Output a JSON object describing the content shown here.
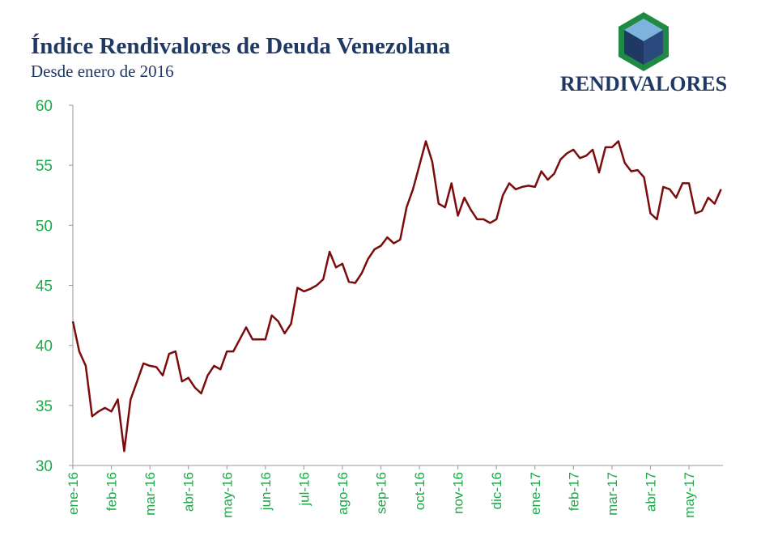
{
  "chart_data": {
    "type": "line",
    "title": "Índice Rendivalores de Deuda Venezolana",
    "subtitle": "Desde enero de 2016",
    "logo_text": "RENDIVALORES",
    "categories": [
      "ene-16",
      null,
      null,
      null,
      null,
      null,
      "feb-16",
      null,
      null,
      null,
      null,
      null,
      "mar-16",
      null,
      null,
      null,
      null,
      null,
      "abr-16",
      null,
      null,
      null,
      null,
      null,
      "may-16",
      null,
      null,
      null,
      null,
      null,
      "jun-16",
      null,
      null,
      null,
      null,
      null,
      "jul-16",
      null,
      null,
      null,
      null,
      null,
      "ago-16",
      null,
      null,
      null,
      null,
      null,
      "sep-16",
      null,
      null,
      null,
      null,
      null,
      "oct-16",
      null,
      null,
      null,
      null,
      null,
      "nov-16",
      null,
      null,
      null,
      null,
      null,
      "dic-16",
      null,
      null,
      null,
      null,
      null,
      "ene-17",
      null,
      null,
      null,
      null,
      null,
      "feb-17",
      null,
      null,
      null,
      null,
      null,
      "mar-17",
      null,
      null,
      null,
      null,
      null,
      "abr-17",
      null,
      null,
      null,
      null,
      null,
      "may-17",
      null,
      null,
      null,
      null,
      null
    ],
    "values": [
      42,
      39.5,
      38.3,
      34.1,
      34.5,
      34.8,
      34.5,
      35.5,
      31.2,
      35.5,
      37,
      38.5,
      38.3,
      38.2,
      37.5,
      39.3,
      39.5,
      37,
      37.3,
      36.5,
      36,
      37.5,
      38.3,
      38,
      39.5,
      39.5,
      40.5,
      41.5,
      40.5,
      40.5,
      40.5,
      42.5,
      42,
      41,
      41.8,
      44.8,
      44.5,
      44.7,
      45,
      45.5,
      47.8,
      46.5,
      46.8,
      45.3,
      45.2,
      46,
      47.2,
      48,
      48.3,
      49,
      48.5,
      48.8,
      51.5,
      53,
      55,
      57,
      55.3,
      51.8,
      51.5,
      53.5,
      50.8,
      52.3,
      51.3,
      50.5,
      50.5,
      50.2,
      50.5,
      52.5,
      53.5,
      53,
      53.2,
      53.3,
      53.2,
      54.5,
      53.8,
      54.3,
      55.5,
      56,
      56.3,
      55.6,
      55.8,
      56.3,
      54.4,
      56.5,
      56.5,
      57,
      55.2,
      54.5,
      54.6,
      54,
      51,
      50.5,
      53.2,
      53,
      52.3,
      53.5,
      53.5,
      51,
      51.2,
      52.3,
      51.8,
      53
    ],
    "color": "#7b0c0c",
    "ylim": [
      30,
      60
    ],
    "yticks": [
      30,
      35,
      40,
      45,
      50,
      55,
      60
    ],
    "grid": false
  }
}
